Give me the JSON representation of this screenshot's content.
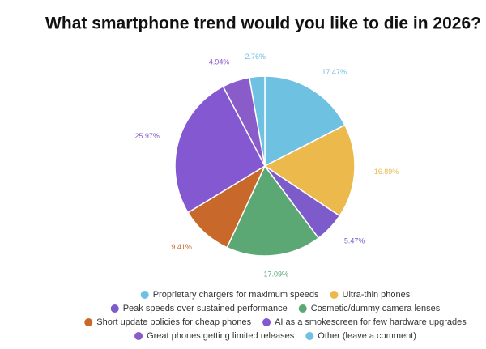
{
  "chart_data": {
    "type": "pie",
    "title": "What smartphone trend would you like to die in 2026?",
    "categories": [
      "Proprietary chargers for maximum speeds",
      "Ultra-thin phones",
      "Peak speeds over sustained performance",
      "Cosmetic/dummy camera lenses",
      "Short update policies for cheap phones",
      "AI as a smokescreen for few hardware upgrades",
      "Great phones getting limited releases",
      "Other (leave a comment)"
    ],
    "values": [
      17.47,
      16.89,
      5.47,
      17.09,
      9.41,
      25.97,
      4.94,
      2.76
    ],
    "value_labels": [
      "17.47%",
      "16.89%",
      "5.47%",
      "17.09%",
      "9.41%",
      "25.97%",
      "4.94%",
      "2.76%"
    ],
    "colors": [
      "#6ec1e0",
      "#ebb94c",
      "#7d5bcb",
      "#5ba874",
      "#c8692b",
      "#8458d0",
      "#8a5cc9",
      "#6ec1e0"
    ]
  }
}
